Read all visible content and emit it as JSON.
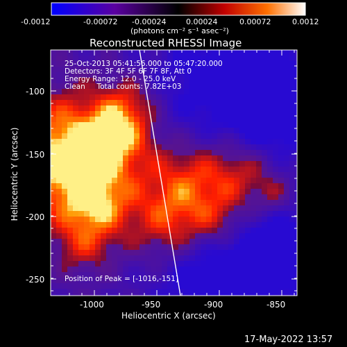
{
  "colorbar": {
    "ticks": [
      "-0.0012",
      "-0.00072",
      "-0.00024",
      "0.00024",
      "0.00072",
      "0.0012"
    ],
    "units": "(photons cm⁻² s⁻¹ asec⁻²)"
  },
  "title": "Reconstructed RHESSI Image",
  "info_lines": [
    "25-Oct-2013 05:41:56.000 to 05:47:20.000",
    "Detectors: 3F 4F 5F 6F 7F 8F, Att 0",
    "Energy Range: 12.0 - 25.0 keV",
    "Clean     Total counts: 7.82E+03"
  ],
  "peak_text": "Position of Peak = [-1016,-151]",
  "x_axis": {
    "label": "Heliocentric X (arcsec)",
    "ticks": [
      "-1000",
      "-950",
      "-900",
      "-850"
    ]
  },
  "y_axis": {
    "label": "Heliocentric Y (arcsec)",
    "ticks": [
      "-100",
      "-150",
      "-200",
      "-250"
    ]
  },
  "timestamp": "17-May-2022 13:57",
  "colors": {
    "background": "#000000",
    "limb": "#ffffff"
  }
}
